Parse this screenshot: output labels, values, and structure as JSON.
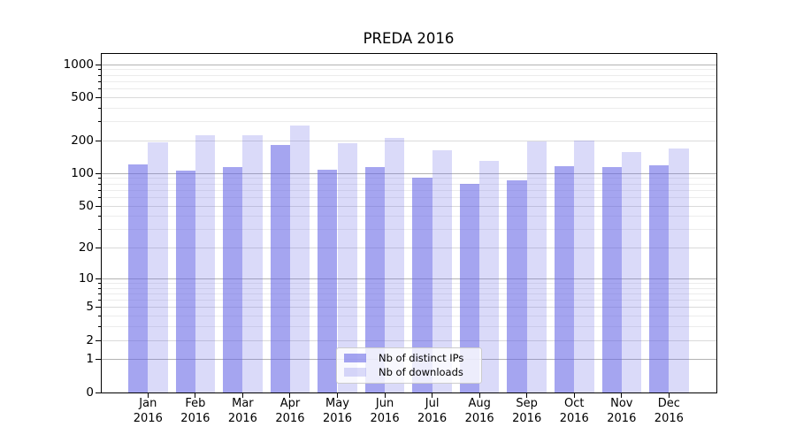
{
  "chart_data": {
    "type": "bar",
    "title": "PREDA 2016",
    "categories": [
      "Jan",
      "Feb",
      "Mar",
      "Apr",
      "May",
      "Jun",
      "Jul",
      "Aug",
      "Sep",
      "Oct",
      "Nov",
      "Dec"
    ],
    "x_axis": {
      "year_label": "2016"
    },
    "series": [
      {
        "name": "Nb of distinct IPs",
        "color": "rgba(100,100,230,0.58)",
        "values": [
          121,
          107,
          115,
          185,
          108,
          115,
          92,
          80,
          87,
          116,
          114,
          120
        ]
      },
      {
        "name": "Nb of downloads",
        "color": "rgba(100,100,230,0.24)",
        "values": [
          195,
          226,
          226,
          276,
          189,
          214,
          163,
          130,
          198,
          202,
          159,
          170
        ]
      }
    ],
    "y_axis": {
      "scale": "symlog (position proportional to ln(1+v))",
      "ticks": [
        {
          "label": "0",
          "value": 0
        },
        {
          "label": "1",
          "value": 1
        },
        {
          "label": "2",
          "value": 2
        },
        {
          "label": "5",
          "value": 5
        },
        {
          "label": "10",
          "value": 10
        },
        {
          "label": "20",
          "value": 20
        },
        {
          "label": "50",
          "value": 50
        },
        {
          "label": "100",
          "value": 100
        },
        {
          "label": "200",
          "value": 200
        },
        {
          "label": "500",
          "value": 500
        },
        {
          "label": "1000",
          "value": 1000
        }
      ],
      "minor_ticks": [
        3,
        4,
        6,
        7,
        8,
        9,
        30,
        40,
        60,
        70,
        80,
        90,
        300,
        400,
        600,
        700,
        800,
        900
      ],
      "ylim": [
        0,
        1300
      ]
    },
    "legend": {
      "position": "lower center",
      "entries": [
        "Nb of distinct IPs",
        "Nb of downloads"
      ]
    },
    "grid": true,
    "colors": {
      "grid_major": "#b3b3b3",
      "grid_labeled": "#dadada",
      "grid_minor": "#ececec",
      "frame": "#000000",
      "text": "#000000",
      "background": "#ffffff"
    }
  }
}
